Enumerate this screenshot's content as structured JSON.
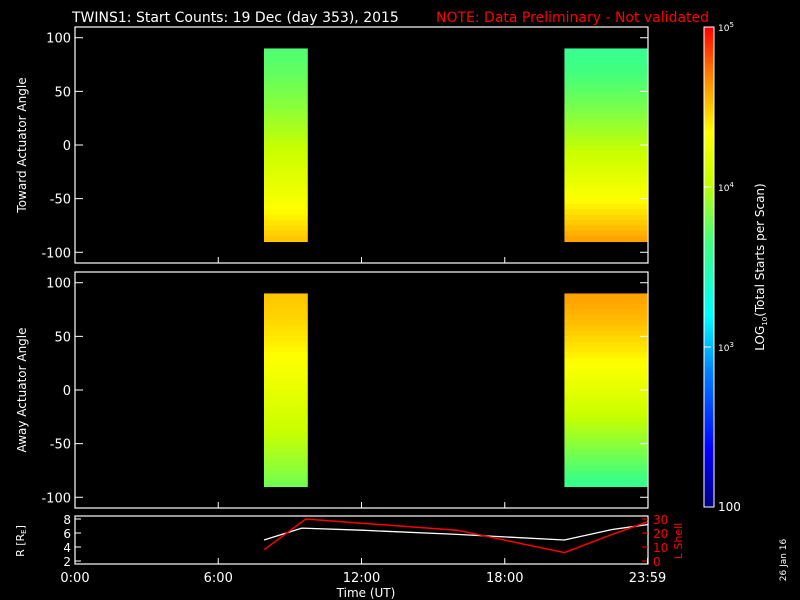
{
  "title": "TWINS1: Start Counts: 19 Dec (day 353), 2015",
  "note": "NOTE: Data Preliminary - Not validated",
  "date_stamp": "26 Jan 16",
  "colors": {
    "background": "#000000",
    "axes": "#ffffff",
    "note": "#ff0000",
    "r_line": "#ffffff",
    "lshell_line": "#ff0000"
  },
  "chart_data": [
    {
      "type": "heatmap",
      "panel": "toward",
      "ylabel": "Toward Actuator Angle",
      "ylim": [
        -110,
        110
      ],
      "yticks": [
        100,
        50,
        0,
        -50,
        -100
      ],
      "xlim_hours": [
        0,
        24
      ],
      "data_angle_range": [
        -90,
        90
      ],
      "intervals": [
        {
          "start": "07:55",
          "end": "09:45",
          "level_near_top": 3.7,
          "level_near_bottom": 4.5
        },
        {
          "start": "20:30",
          "end": "23:59",
          "level_near_top": 3.6,
          "level_near_bottom": 4.6
        }
      ]
    },
    {
      "type": "heatmap",
      "panel": "away",
      "ylabel": "Away Actuator Angle",
      "ylim": [
        -110,
        110
      ],
      "yticks": [
        100,
        50,
        0,
        -50,
        -100
      ],
      "xlim_hours": [
        0,
        24
      ],
      "data_angle_range": [
        -90,
        90
      ],
      "intervals": [
        {
          "start": "07:55",
          "end": "09:45",
          "level_near_top": 4.5,
          "level_near_bottom": 3.8
        },
        {
          "start": "20:30",
          "end": "23:59",
          "level_near_top": 4.6,
          "level_near_bottom": 3.6
        }
      ]
    },
    {
      "type": "line",
      "panel": "ephemeris",
      "ylabel": "R [R",
      "ylabel_sub": "E",
      "ylabel_end": "]",
      "ylabel_right": "L Shell",
      "ylim": [
        2,
        8
      ],
      "yticks": [
        2,
        4,
        6,
        8
      ],
      "ylim_right": [
        0,
        30
      ],
      "yticks_right": [
        0,
        10,
        20,
        30
      ],
      "series": [
        {
          "axis": "left",
          "x": [
            "07:55",
            "09:30",
            "12:00",
            "16:00",
            "20:30",
            "22:30",
            "23:59"
          ],
          "y": [
            5.0,
            6.7,
            6.4,
            5.8,
            5.0,
            6.5,
            7.2
          ]
        },
        {
          "axis": "right",
          "x": [
            "07:55",
            "09:40",
            "12:00",
            "16:00",
            "20:30",
            "22:30",
            "23:59"
          ],
          "y": [
            8,
            31,
            27,
            22,
            6,
            19,
            28
          ]
        }
      ],
      "xlabel": "Time (UT)",
      "xticks": [
        "0:00",
        "6:00",
        "12:00",
        "18:00",
        "23:59"
      ],
      "xtick_hours": [
        0,
        6,
        12,
        18,
        23.98
      ]
    }
  ],
  "colorbar": {
    "label_main": "LOG",
    "label_sub": "10",
    "label_rest": "(Total Starts per Scan)",
    "scale": "log",
    "range": [
      100,
      100000
    ],
    "ticks": [
      {
        "value": 5,
        "base": "10",
        "exp": "5"
      },
      {
        "value": 4,
        "base": "10",
        "exp": "4"
      },
      {
        "value": 3,
        "base": "10",
        "exp": "3"
      },
      {
        "value": 2,
        "label": "100"
      }
    ]
  }
}
